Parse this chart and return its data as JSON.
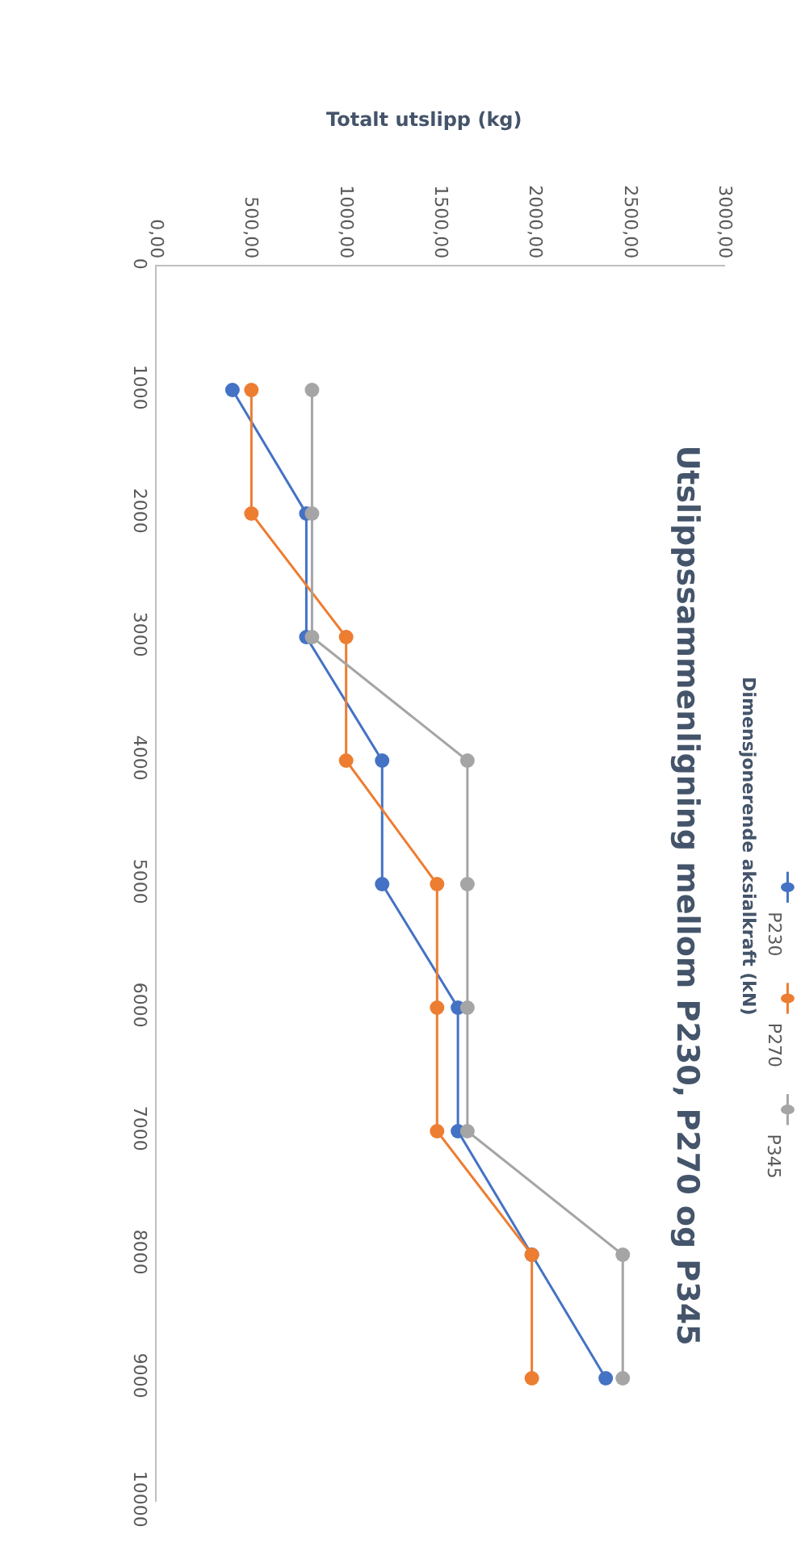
{
  "chart_data": {
    "type": "line",
    "title": "Utslippssammenligning mellom P230, P270 og P345",
    "xlabel": "Totalt utslipp (kg)",
    "ylabel": "Dimensjonerende aksialkraft (kN)",
    "series": [
      {
        "name": "P230",
        "color": "#4472c4",
        "x": [
          400,
          790,
          790,
          1190,
          1190,
          1590,
          1590,
          1980,
          2370
        ],
        "values": [
          1000,
          2000,
          3000,
          4000,
          5000,
          6000,
          7000,
          8000,
          9000
        ]
      },
      {
        "name": "P270",
        "color": "#ed7d31",
        "x": [
          500,
          500,
          1000,
          1000,
          1480,
          1480,
          1480,
          1980,
          1980
        ],
        "values": [
          1000,
          2000,
          3000,
          4000,
          5000,
          6000,
          7000,
          8000,
          9000
        ]
      },
      {
        "name": "P345",
        "color": "#a5a5a5",
        "x": [
          820,
          820,
          820,
          1640,
          1640,
          1640,
          1640,
          2460,
          2460
        ],
        "values": [
          1000,
          2000,
          3000,
          4000,
          5000,
          6000,
          7000,
          8000,
          9000
        ]
      }
    ],
    "ylim": [
      10000,
      0
    ],
    "yticks": [
      0,
      1000,
      2000,
      3000,
      4000,
      5000,
      6000,
      7000,
      8000,
      9000,
      10000
    ],
    "xlim": [
      0,
      3000
    ],
    "xticks": [
      {
        "value": 0,
        "label": "0,00"
      },
      {
        "value": 500,
        "label": "500,00"
      },
      {
        "value": 1000,
        "label": "1000,00"
      },
      {
        "value": 1500,
        "label": "1500,00"
      },
      {
        "value": 2000,
        "label": "2000,00"
      },
      {
        "value": 2500,
        "label": "2500,00"
      },
      {
        "value": 3000,
        "label": "3000,00"
      }
    ],
    "grid": false,
    "legend": "right",
    "marker": "circle",
    "line_style": "solid"
  }
}
